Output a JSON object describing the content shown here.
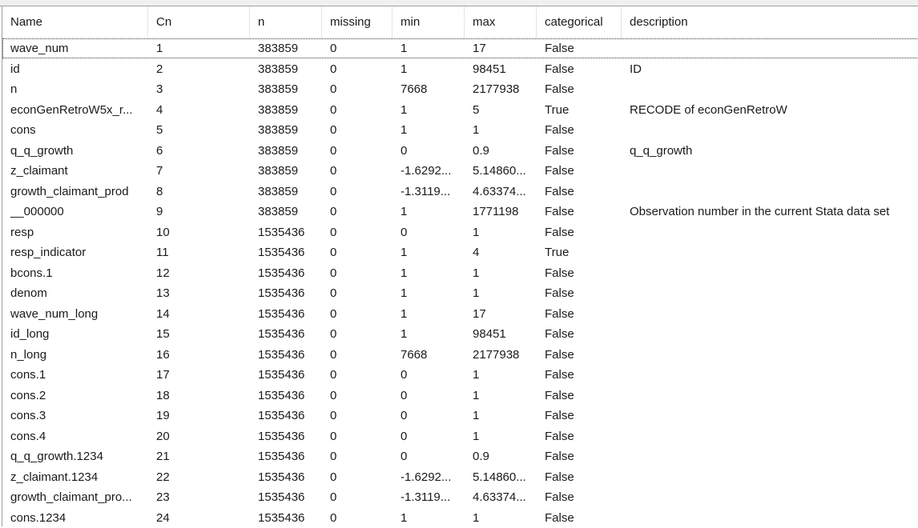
{
  "columns": [
    "Name",
    "Cn",
    "n",
    "missing",
    "min",
    "max",
    "categorical",
    "description"
  ],
  "rows": [
    [
      "wave_num",
      "1",
      "383859",
      "0",
      "1",
      "17",
      "False",
      ""
    ],
    [
      "id",
      "2",
      "383859",
      "0",
      "1",
      "98451",
      "False",
      "ID"
    ],
    [
      "n",
      "3",
      "383859",
      "0",
      "7668",
      "2177938",
      "False",
      ""
    ],
    [
      "econGenRetroW5x_r...",
      "4",
      "383859",
      "0",
      "1",
      "5",
      "True",
      "RECODE of econGenRetroW"
    ],
    [
      "cons",
      "5",
      "383859",
      "0",
      "1",
      "1",
      "False",
      ""
    ],
    [
      "q_q_growth",
      "6",
      "383859",
      "0",
      "0",
      "0.9",
      "False",
      "q_q_growth"
    ],
    [
      "z_claimant",
      "7",
      "383859",
      "0",
      "-1.6292...",
      "5.14860...",
      "False",
      ""
    ],
    [
      "growth_claimant_prod",
      "8",
      "383859",
      "0",
      "-1.3119...",
      "4.63374...",
      "False",
      ""
    ],
    [
      "__000000",
      "9",
      "383859",
      "0",
      "1",
      "1771198",
      "False",
      "Observation number in the current Stata data set"
    ],
    [
      "resp",
      "10",
      "1535436",
      "0",
      "0",
      "1",
      "False",
      ""
    ],
    [
      "resp_indicator",
      "11",
      "1535436",
      "0",
      "1",
      "4",
      "True",
      ""
    ],
    [
      "bcons.1",
      "12",
      "1535436",
      "0",
      "1",
      "1",
      "False",
      ""
    ],
    [
      "denom",
      "13",
      "1535436",
      "0",
      "1",
      "1",
      "False",
      ""
    ],
    [
      "wave_num_long",
      "14",
      "1535436",
      "0",
      "1",
      "17",
      "False",
      ""
    ],
    [
      "id_long",
      "15",
      "1535436",
      "0",
      "1",
      "98451",
      "False",
      ""
    ],
    [
      "n_long",
      "16",
      "1535436",
      "0",
      "7668",
      "2177938",
      "False",
      ""
    ],
    [
      "cons.1",
      "17",
      "1535436",
      "0",
      "0",
      "1",
      "False",
      ""
    ],
    [
      "cons.2",
      "18",
      "1535436",
      "0",
      "0",
      "1",
      "False",
      ""
    ],
    [
      "cons.3",
      "19",
      "1535436",
      "0",
      "0",
      "1",
      "False",
      ""
    ],
    [
      "cons.4",
      "20",
      "1535436",
      "0",
      "0",
      "1",
      "False",
      ""
    ],
    [
      "q_q_growth.1234",
      "21",
      "1535436",
      "0",
      "0",
      "0.9",
      "False",
      ""
    ],
    [
      "z_claimant.1234",
      "22",
      "1535436",
      "0",
      "-1.6292...",
      "5.14860...",
      "False",
      ""
    ],
    [
      "growth_claimant_pro...",
      "23",
      "1535436",
      "0",
      "-1.3119...",
      "4.63374...",
      "False",
      ""
    ],
    [
      "cons.1234",
      "24",
      "1535436",
      "0",
      "1",
      "1",
      "False",
      ""
    ]
  ]
}
